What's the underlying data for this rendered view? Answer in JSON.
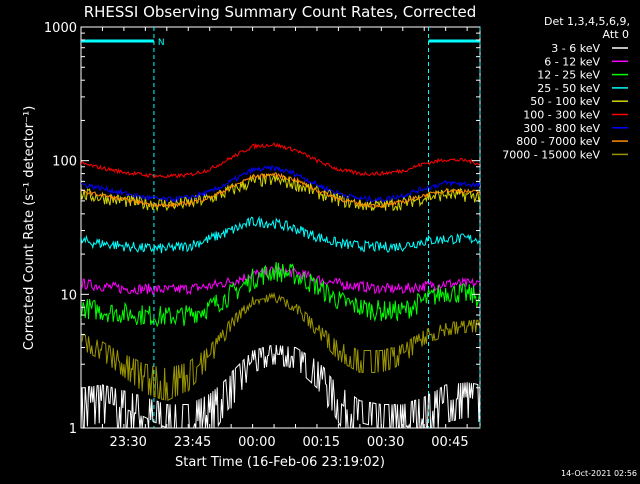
{
  "chart_data": {
    "type": "line",
    "title": "RHESSI Observing Summary Count Rates, Corrected",
    "xlabel": "Start Time (16-Feb-06 23:19:02)",
    "ylabel": "Corrected Count Rate (s⁻¹ detector⁻¹)",
    "y_scale": "log",
    "ylim": [
      1,
      1000
    ],
    "y_ticks": [
      {
        "value": 1,
        "label": "1"
      },
      {
        "value": 10,
        "label": "10"
      },
      {
        "value": 100,
        "label": "100"
      },
      {
        "value": 1000,
        "label": "1000"
      }
    ],
    "x_unit": "minutes after 23:19:02",
    "xlim": [
      0,
      93
    ],
    "x_ticks": [
      {
        "value": 11,
        "label": "23:30"
      },
      {
        "value": 26,
        "label": "23:45"
      },
      {
        "value": 41,
        "label": "00:00"
      },
      {
        "value": 56,
        "label": "00:15"
      },
      {
        "value": 71,
        "label": "00:30"
      },
      {
        "value": 86,
        "label": "00:45"
      }
    ],
    "legend": {
      "location": "top-right",
      "header_lines": [
        "Det 1,3,4,5,6,9,",
        "Att 0"
      ]
    },
    "flags": {
      "label": "N",
      "night_bars": [
        {
          "start": 0,
          "end": 17
        },
        {
          "start": 81,
          "end": 93
        }
      ],
      "boundaries": [
        17,
        81,
        93
      ]
    },
    "series_x": [
      0,
      5,
      10,
      15,
      20,
      25,
      30,
      35,
      40,
      45,
      50,
      55,
      60,
      65,
      70,
      75,
      80,
      85,
      90,
      93
    ],
    "series": [
      {
        "name": "3 - 6 keV",
        "color": "#ffffff",
        "noise": 0.0,
        "values": [
          1.5,
          1.6,
          1.4,
          1.2,
          1.0,
          1.0,
          1.3,
          2.0,
          3.2,
          3.6,
          3.4,
          2.6,
          1.6,
          1.1,
          1.0,
          1.0,
          1.2,
          1.6,
          1.7,
          1.6
        ]
      },
      {
        "name": "6 - 12 keV",
        "color": "#ff00ff",
        "noise": 0.04,
        "values": [
          12,
          11.5,
          11,
          11,
          10.8,
          11,
          11.5,
          12.5,
          14,
          15,
          14.5,
          13,
          12,
          11.5,
          11,
          11,
          11.5,
          12,
          12,
          12
        ]
      },
      {
        "name": "12 - 25 keV",
        "color": "#00ff00",
        "noise": 0.08,
        "values": [
          8,
          7.5,
          7.2,
          7,
          6.8,
          7,
          8,
          10,
          13,
          15,
          14,
          11.5,
          9,
          8,
          7.5,
          7.5,
          9,
          10.5,
          10,
          9.5
        ]
      },
      {
        "name": "25 - 50 keV",
        "color": "#00ffff",
        "noise": 0.04,
        "values": [
          25,
          24,
          23,
          22,
          22,
          23,
          26,
          30,
          35,
          34,
          31,
          27,
          24,
          23,
          22.5,
          23,
          25,
          26,
          26,
          26
        ]
      },
      {
        "name": "50 - 100 keV",
        "color": "#d4d400",
        "noise": 0.05,
        "values": [
          56,
          53,
          50,
          48,
          47,
          48,
          52,
          60,
          70,
          72,
          67,
          58,
          51,
          47,
          46,
          48,
          53,
          56,
          55,
          54
        ]
      },
      {
        "name": "100 - 300 keV",
        "color": "#ff0000",
        "noise": 0.015,
        "values": [
          95,
          88,
          82,
          78,
          76,
          78,
          86,
          105,
          128,
          132,
          120,
          100,
          86,
          80,
          80,
          84,
          95,
          102,
          100,
          95
        ]
      },
      {
        "name": "300 - 800 keV",
        "color": "#0000ff",
        "noise": 0.02,
        "values": [
          67,
          62,
          57,
          53,
          51,
          53,
          58,
          70,
          85,
          88,
          80,
          66,
          57,
          52,
          51,
          55,
          62,
          68,
          67,
          65
        ]
      },
      {
        "name": "800 - 7000 keV",
        "color": "#ff8c00",
        "noise": 0.015,
        "values": [
          59,
          55,
          51,
          48,
          46,
          48,
          53,
          63,
          76,
          79,
          72,
          60,
          52,
          47,
          46,
          49,
          55,
          60,
          59,
          58
        ]
      },
      {
        "name": "7000 - 15000 keV",
        "color": "#9a9400",
        "noise": 0.0,
        "values": [
          4.5,
          3.8,
          3.0,
          2.4,
          2.2,
          2.5,
          3.5,
          6.0,
          9.0,
          9.5,
          8.0,
          5.5,
          3.8,
          3.2,
          3.2,
          3.6,
          4.8,
          5.5,
          5.8,
          5.8
        ]
      }
    ]
  },
  "footer_timestamp": "14-Oct-2021 02:56"
}
